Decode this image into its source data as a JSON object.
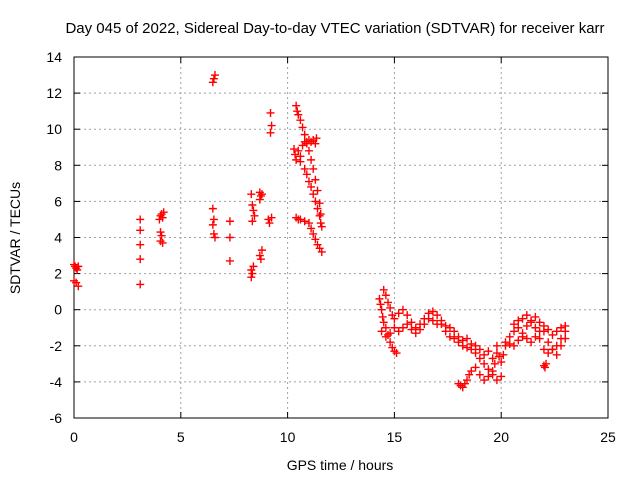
{
  "chart_data": {
    "type": "scatter",
    "title": "Day 045 of 2022, Sidereal Day-to-day VTEC variation (SDTVAR) for receiver karr",
    "xlabel": "GPS time / hours",
    "ylabel": "SDTVAR / TECUs",
    "xlim": [
      0,
      25
    ],
    "ylim": [
      -6,
      14
    ],
    "xticks": [
      0,
      5,
      10,
      15,
      20,
      25
    ],
    "xtick_labels": [
      "0",
      "5",
      "10",
      "15",
      "20",
      "25"
    ],
    "yticks": [
      -6,
      -4,
      -2,
      0,
      2,
      4,
      6,
      8,
      10,
      12,
      14
    ],
    "ytick_labels": [
      "-6",
      "-4",
      "-2",
      "0",
      "2",
      "4",
      "6",
      "8",
      "10",
      "12",
      "14"
    ],
    "grid": true,
    "marker": "plus",
    "marker_color": "#ff0000",
    "series": [
      {
        "name": "SDTVAR",
        "points": [
          [
            0.0,
            2.5
          ],
          [
            0.05,
            2.4
          ],
          [
            0.1,
            2.3
          ],
          [
            0.15,
            2.2
          ],
          [
            0.2,
            2.4
          ],
          [
            0.0,
            1.6
          ],
          [
            0.1,
            1.5
          ],
          [
            0.2,
            1.3
          ],
          [
            3.1,
            5.0
          ],
          [
            3.1,
            4.4
          ],
          [
            3.1,
            3.6
          ],
          [
            3.1,
            2.8
          ],
          [
            3.1,
            1.4
          ],
          [
            4.0,
            5.0
          ],
          [
            4.05,
            5.2
          ],
          [
            4.1,
            5.3
          ],
          [
            4.15,
            5.1
          ],
          [
            4.2,
            5.4
          ],
          [
            4.05,
            4.3
          ],
          [
            4.1,
            4.1
          ],
          [
            4.05,
            3.8
          ],
          [
            4.15,
            3.7
          ],
          [
            6.5,
            12.6
          ],
          [
            6.55,
            12.8
          ],
          [
            6.6,
            13.0
          ],
          [
            6.5,
            5.6
          ],
          [
            6.55,
            5.0
          ],
          [
            6.5,
            4.7
          ],
          [
            6.55,
            4.2
          ],
          [
            6.6,
            4.0
          ],
          [
            7.3,
            4.9
          ],
          [
            7.3,
            4.0
          ],
          [
            7.3,
            2.7
          ],
          [
            8.3,
            6.4
          ],
          [
            8.35,
            5.8
          ],
          [
            8.4,
            5.5
          ],
          [
            8.45,
            5.2
          ],
          [
            8.35,
            4.9
          ],
          [
            8.3,
            2.2
          ],
          [
            8.35,
            2.0
          ],
          [
            8.3,
            1.8
          ],
          [
            8.4,
            2.4
          ],
          [
            8.7,
            6.5
          ],
          [
            8.75,
            6.3
          ],
          [
            8.8,
            6.4
          ],
          [
            8.7,
            6.1
          ],
          [
            8.7,
            3.0
          ],
          [
            8.8,
            3.3
          ],
          [
            8.75,
            2.8
          ],
          [
            9.2,
            10.9
          ],
          [
            9.25,
            10.2
          ],
          [
            9.2,
            9.8
          ],
          [
            9.1,
            5.0
          ],
          [
            9.15,
            4.8
          ],
          [
            9.25,
            5.1
          ],
          [
            10.4,
            11.3
          ],
          [
            10.45,
            11.0
          ],
          [
            10.5,
            10.8
          ],
          [
            10.6,
            10.5
          ],
          [
            10.7,
            10.1
          ],
          [
            10.8,
            9.7
          ],
          [
            10.9,
            9.3
          ],
          [
            11.0,
            8.8
          ],
          [
            11.1,
            8.3
          ],
          [
            11.2,
            7.8
          ],
          [
            11.3,
            7.2
          ],
          [
            11.4,
            6.6
          ],
          [
            11.5,
            5.9
          ],
          [
            11.55,
            5.3
          ],
          [
            11.6,
            4.6
          ],
          [
            10.3,
            8.9
          ],
          [
            10.35,
            8.6
          ],
          [
            10.4,
            8.3
          ],
          [
            10.5,
            8.8
          ],
          [
            10.6,
            8.5
          ],
          [
            10.7,
            9.1
          ],
          [
            10.8,
            9.3
          ],
          [
            10.9,
            9.2
          ],
          [
            11.0,
            9.4
          ],
          [
            11.1,
            9.3
          ],
          [
            11.2,
            9.4
          ],
          [
            11.3,
            9.2
          ],
          [
            11.35,
            9.5
          ],
          [
            10.6,
            8.2
          ],
          [
            10.8,
            7.8
          ],
          [
            10.9,
            7.5
          ],
          [
            11.0,
            7.1
          ],
          [
            11.1,
            6.8
          ],
          [
            11.2,
            6.4
          ],
          [
            11.3,
            6.0
          ],
          [
            11.4,
            5.6
          ],
          [
            11.5,
            5.2
          ],
          [
            11.55,
            4.8
          ],
          [
            10.4,
            5.1
          ],
          [
            10.5,
            5.0
          ],
          [
            10.6,
            5.0
          ],
          [
            10.8,
            4.9
          ],
          [
            11.0,
            4.8
          ],
          [
            11.1,
            4.5
          ],
          [
            11.2,
            4.2
          ],
          [
            11.3,
            3.9
          ],
          [
            11.4,
            3.6
          ],
          [
            11.5,
            3.4
          ],
          [
            11.6,
            3.2
          ],
          [
            14.3,
            0.6
          ],
          [
            14.35,
            0.3
          ],
          [
            14.4,
            0.0
          ],
          [
            14.45,
            -0.4
          ],
          [
            14.5,
            -0.7
          ],
          [
            14.6,
            -1.0
          ],
          [
            14.7,
            -1.4
          ],
          [
            14.8,
            -1.8
          ],
          [
            14.9,
            -2.1
          ],
          [
            15.0,
            -2.3
          ],
          [
            15.1,
            -2.4
          ],
          [
            14.5,
            1.1
          ],
          [
            14.6,
            0.8
          ],
          [
            14.7,
            0.4
          ],
          [
            14.8,
            0.1
          ],
          [
            14.9,
            -0.3
          ],
          [
            15.0,
            -0.5
          ],
          [
            15.2,
            -0.2
          ],
          [
            15.4,
            0.0
          ],
          [
            15.6,
            -0.3
          ],
          [
            15.8,
            -0.7
          ],
          [
            16.0,
            -1.0
          ],
          [
            16.2,
            -0.8
          ],
          [
            16.4,
            -0.5
          ],
          [
            16.6,
            -0.2
          ],
          [
            16.8,
            -0.1
          ],
          [
            17.0,
            -0.3
          ],
          [
            17.2,
            -0.8
          ],
          [
            17.4,
            -1.2
          ],
          [
            17.6,
            -1.5
          ],
          [
            17.8,
            -1.6
          ],
          [
            18.0,
            -1.8
          ],
          [
            18.2,
            -2.0
          ],
          [
            18.4,
            -2.1
          ],
          [
            18.6,
            -2.2
          ],
          [
            18.8,
            -2.4
          ],
          [
            19.0,
            -2.2
          ],
          [
            19.2,
            -2.5
          ],
          [
            19.4,
            -2.3
          ],
          [
            19.6,
            -2.7
          ],
          [
            19.8,
            -2.4
          ],
          [
            14.4,
            -1.2
          ],
          [
            14.6,
            -1.5
          ],
          [
            14.8,
            -1.3
          ],
          [
            15.0,
            -1.0
          ],
          [
            15.2,
            -1.2
          ],
          [
            15.4,
            -1.0
          ],
          [
            15.6,
            -0.8
          ],
          [
            15.8,
            -1.1
          ],
          [
            16.0,
            -1.3
          ],
          [
            16.2,
            -1.1
          ],
          [
            16.4,
            -0.8
          ],
          [
            16.6,
            -0.5
          ],
          [
            16.8,
            -0.6
          ],
          [
            17.0,
            -0.8
          ],
          [
            17.2,
            -0.6
          ],
          [
            17.4,
            -0.9
          ],
          [
            17.6,
            -1.0
          ],
          [
            17.8,
            -1.2
          ],
          [
            18.0,
            -1.5
          ],
          [
            18.2,
            -1.7
          ],
          [
            18.4,
            -1.6
          ],
          [
            18.6,
            -1.9
          ],
          [
            18.8,
            -2.0
          ],
          [
            19.0,
            -2.7
          ],
          [
            19.2,
            -3.0
          ],
          [
            19.4,
            -3.3
          ],
          [
            19.6,
            -3.6
          ],
          [
            19.8,
            -3.9
          ],
          [
            20.0,
            -3.7
          ],
          [
            18.0,
            -4.1
          ],
          [
            18.1,
            -4.2
          ],
          [
            18.2,
            -4.3
          ],
          [
            18.3,
            -4.1
          ],
          [
            18.4,
            -3.9
          ],
          [
            18.5,
            -3.6
          ],
          [
            18.6,
            -3.4
          ],
          [
            18.8,
            -3.2
          ],
          [
            19.0,
            -3.6
          ],
          [
            19.2,
            -3.9
          ],
          [
            19.4,
            -3.7
          ],
          [
            19.6,
            -3.4
          ],
          [
            19.7,
            -3.0
          ],
          [
            19.8,
            -2.0
          ],
          [
            19.9,
            -2.6
          ],
          [
            20.0,
            -2.9
          ],
          [
            20.1,
            -2.5
          ],
          [
            20.2,
            -2.0
          ],
          [
            20.4,
            -1.5
          ],
          [
            20.6,
            -1.2
          ],
          [
            20.8,
            -1.0
          ],
          [
            21.0,
            -1.3
          ],
          [
            21.2,
            -1.6
          ],
          [
            21.4,
            -1.8
          ],
          [
            21.6,
            -1.5
          ],
          [
            21.8,
            -1.2
          ],
          [
            22.0,
            -0.9
          ],
          [
            22.2,
            -1.1
          ],
          [
            22.4,
            -1.4
          ],
          [
            22.6,
            -1.2
          ],
          [
            22.8,
            -1.0
          ],
          [
            23.0,
            -0.9
          ],
          [
            20.2,
            -1.8
          ],
          [
            20.4,
            -1.9
          ],
          [
            20.6,
            -2.0
          ],
          [
            20.8,
            -1.7
          ],
          [
            21.0,
            -1.5
          ],
          [
            21.2,
            -0.9
          ],
          [
            21.4,
            -0.6
          ],
          [
            21.6,
            -0.4
          ],
          [
            21.8,
            -0.7
          ],
          [
            22.0,
            -1.2
          ],
          [
            22.2,
            -1.8
          ],
          [
            22.4,
            -2.2
          ],
          [
            22.6,
            -2.0
          ],
          [
            22.8,
            -1.6
          ],
          [
            23.0,
            -1.2
          ],
          [
            20.6,
            -0.8
          ],
          [
            20.8,
            -0.6
          ],
          [
            21.0,
            -0.5
          ],
          [
            21.2,
            -0.3
          ],
          [
            21.4,
            -0.7
          ],
          [
            21.6,
            -1.0
          ],
          [
            21.8,
            -1.6
          ],
          [
            22.0,
            -2.2
          ],
          [
            22.2,
            -2.4
          ],
          [
            22.4,
            -2.2
          ],
          [
            22.6,
            -2.5
          ],
          [
            22.8,
            -2.0
          ],
          [
            23.0,
            -1.6
          ],
          [
            22.0,
            -3.1
          ],
          [
            22.05,
            -3.2
          ],
          [
            22.1,
            -3.0
          ]
        ]
      }
    ]
  }
}
